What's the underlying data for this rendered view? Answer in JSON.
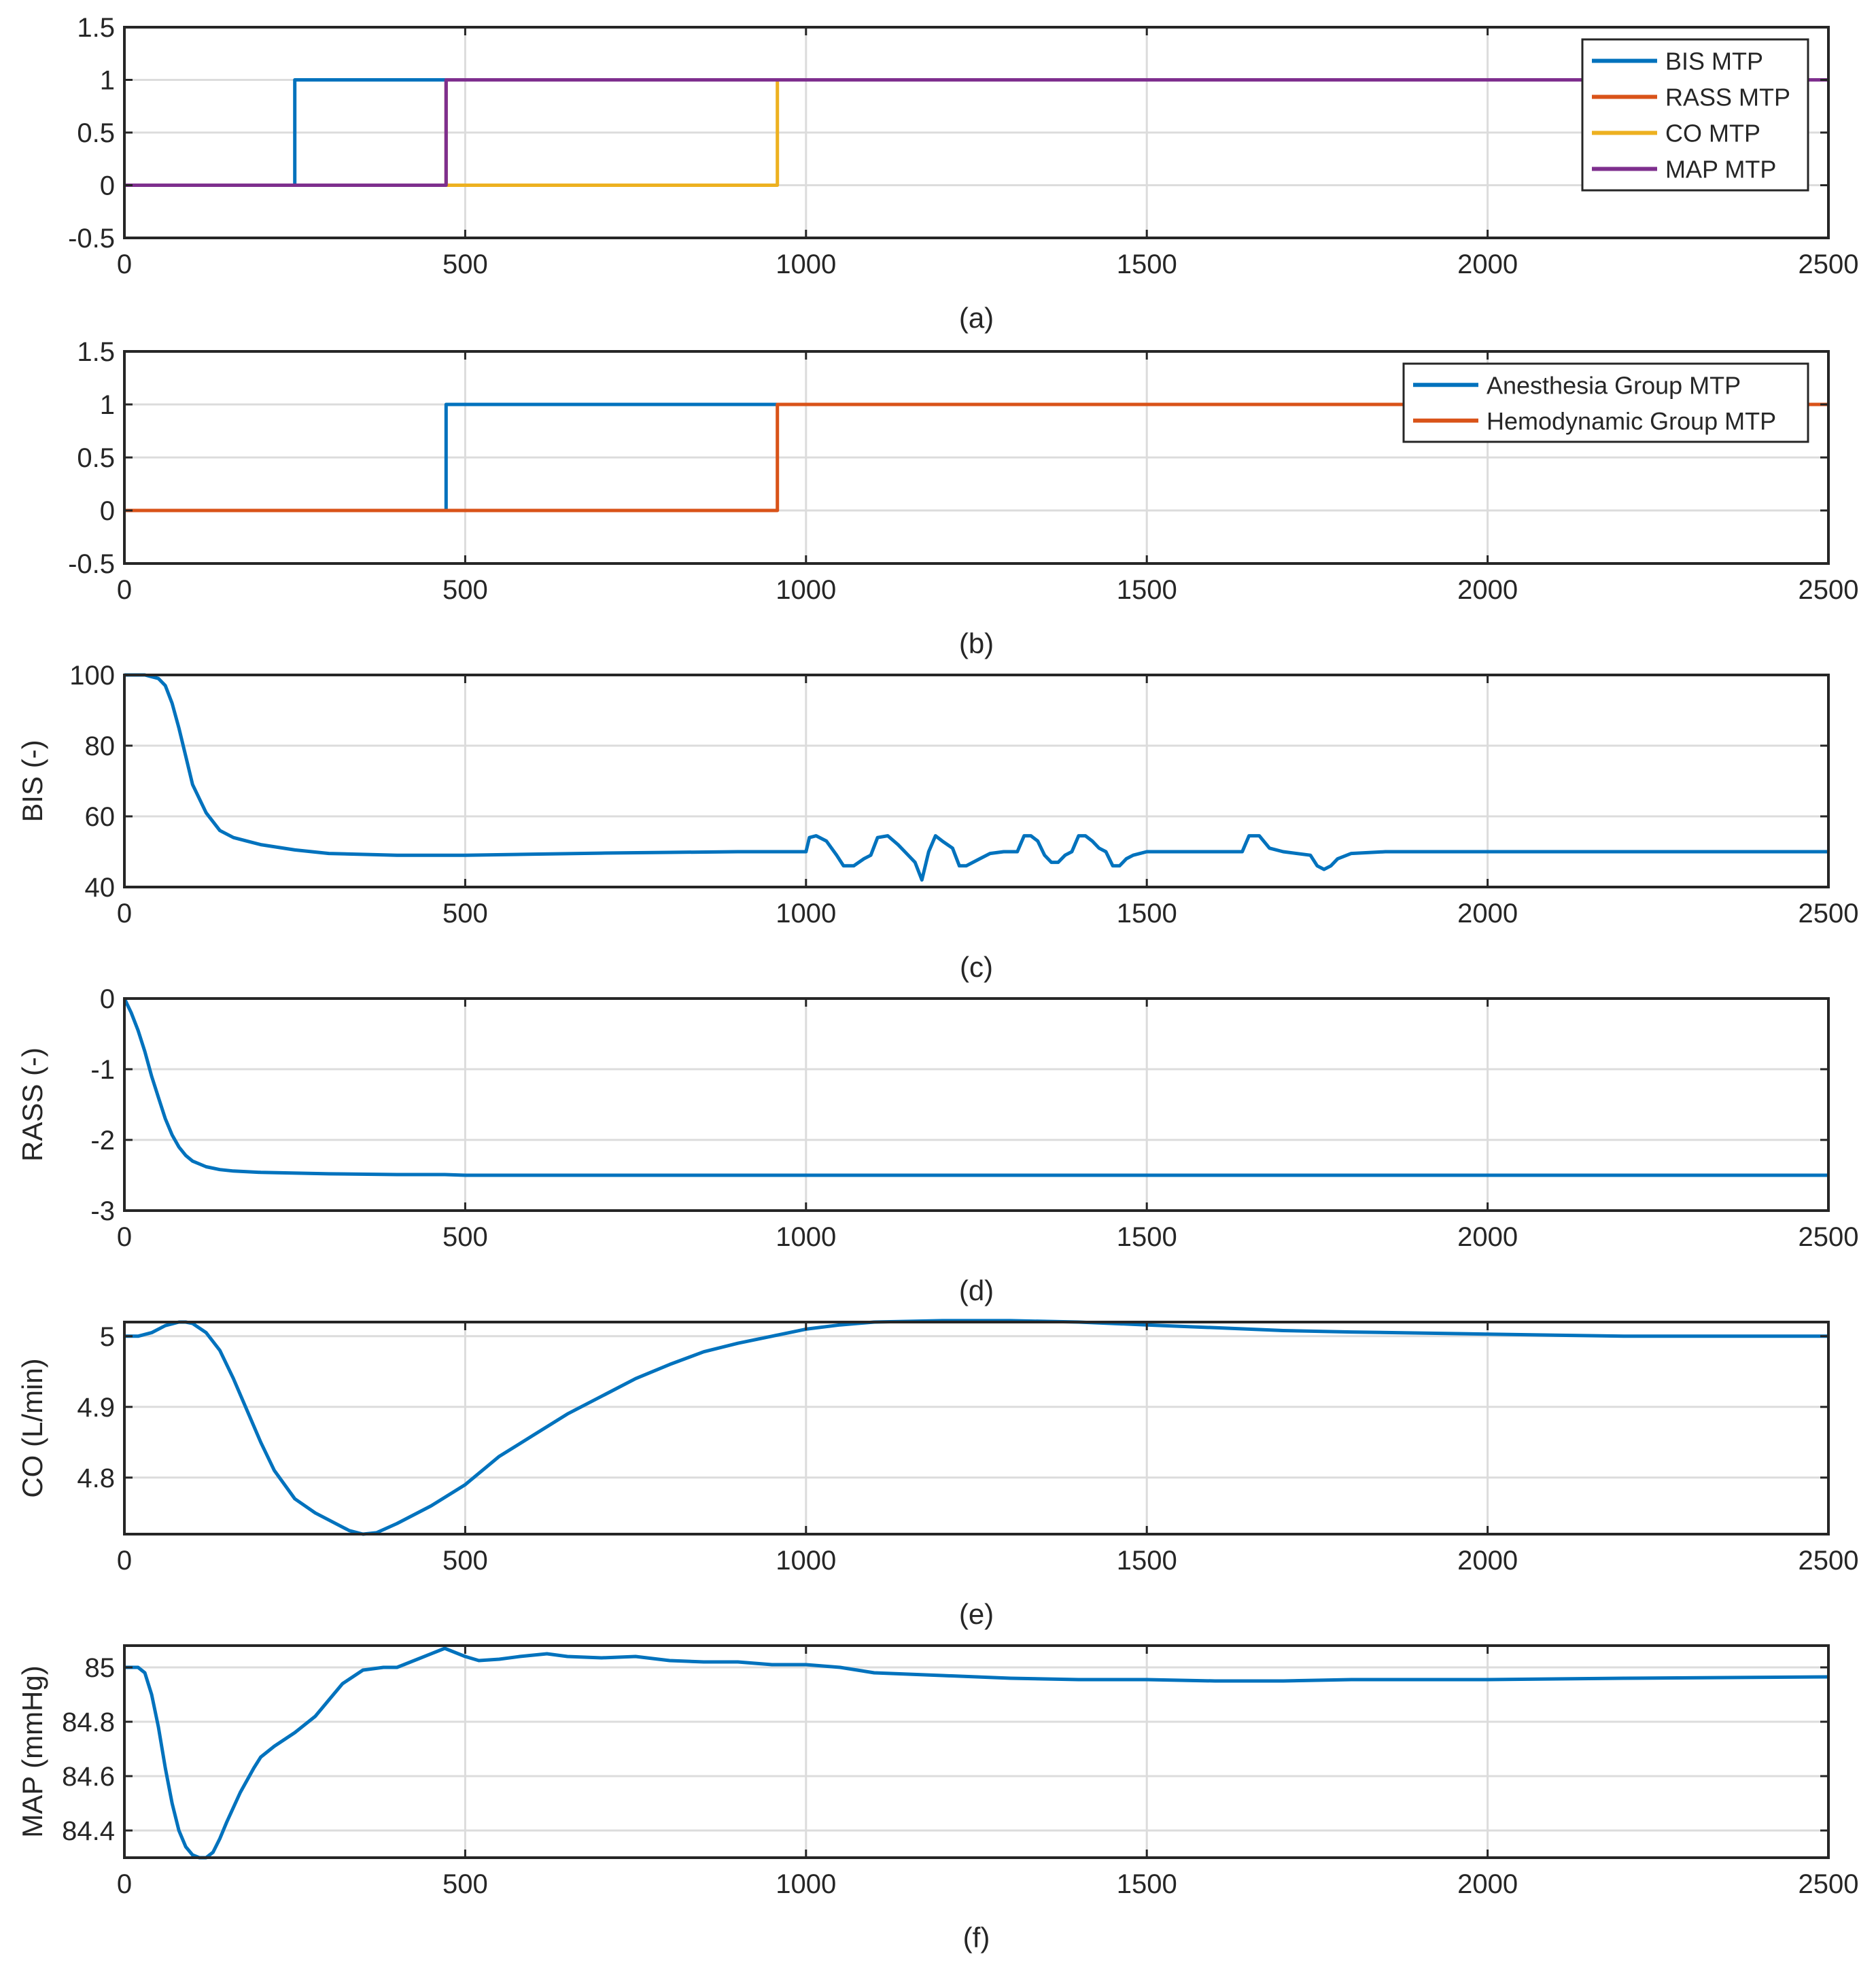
{
  "colors": {
    "blue": "#0072BD",
    "orange": "#D95319",
    "yellow": "#EDB120",
    "purple": "#7E2F8E"
  },
  "chart_data": [
    {
      "type": "line",
      "caption": "(a)",
      "ylabel": "",
      "xlim": [
        0,
        2500
      ],
      "ylim": [
        -0.5,
        1.5
      ],
      "xticks": [
        0,
        500,
        1000,
        1500,
        2000,
        2500
      ],
      "xtick_labels": [
        "0",
        "500",
        "1000",
        "1500",
        "2000",
        "2500"
      ],
      "yticks": [
        -0.5,
        0,
        0.5,
        1,
        1.5
      ],
      "ytick_labels": [
        "-0.5",
        "0",
        "0.5",
        "1",
        "1.5"
      ],
      "grid": true,
      "legend_position": "top-right",
      "series": [
        {
          "name": "BIS MTP",
          "color": "blue",
          "x": [
            0,
            250,
            250,
            2500
          ],
          "y": [
            0,
            0,
            1,
            1
          ]
        },
        {
          "name": "RASS MTP",
          "color": "orange",
          "x": [
            0,
            472,
            472,
            2500
          ],
          "y": [
            0,
            0,
            1,
            1
          ]
        },
        {
          "name": "CO MTP",
          "color": "yellow",
          "x": [
            0,
            958,
            958,
            2500
          ],
          "y": [
            0,
            0,
            1,
            1
          ]
        },
        {
          "name": "MAP MTP",
          "color": "purple",
          "x": [
            0,
            472,
            472,
            2500
          ],
          "y": [
            0,
            0,
            1,
            1
          ]
        }
      ]
    },
    {
      "type": "line",
      "caption": "(b)",
      "ylabel": "",
      "xlim": [
        0,
        2500
      ],
      "ylim": [
        -0.5,
        1.5
      ],
      "xticks": [
        0,
        500,
        1000,
        1500,
        2000,
        2500
      ],
      "xtick_labels": [
        "0",
        "500",
        "1000",
        "1500",
        "2000",
        "2500"
      ],
      "yticks": [
        -0.5,
        0,
        0.5,
        1,
        1.5
      ],
      "ytick_labels": [
        "-0.5",
        "0",
        "0.5",
        "1",
        "1.5"
      ],
      "grid": true,
      "legend_position": "top-right",
      "series": [
        {
          "name": "Anesthesia Group MTP",
          "color": "blue",
          "x": [
            0,
            472,
            472,
            2500
          ],
          "y": [
            0,
            0,
            1,
            1
          ]
        },
        {
          "name": "Hemodynamic Group MTP",
          "color": "orange",
          "x": [
            0,
            958,
            958,
            2500
          ],
          "y": [
            0,
            0,
            1,
            1
          ]
        }
      ]
    },
    {
      "type": "line",
      "caption": "(c)",
      "ylabel": "BIS (-)",
      "xlim": [
        0,
        2500
      ],
      "ylim": [
        40,
        100
      ],
      "xticks": [
        0,
        500,
        1000,
        1500,
        2000,
        2500
      ],
      "xtick_labels": [
        "0",
        "500",
        "1000",
        "1500",
        "2000",
        "2500"
      ],
      "yticks": [
        40,
        60,
        80,
        100
      ],
      "ytick_labels": [
        "40",
        "60",
        "80",
        "100"
      ],
      "grid": true,
      "legend_position": "none",
      "series": [
        {
          "name": "BIS",
          "color": "blue",
          "x": [
            0,
            30,
            50,
            60,
            70,
            80,
            90,
            100,
            120,
            140,
            160,
            180,
            200,
            250,
            300,
            400,
            500,
            600,
            700,
            800,
            900,
            990,
            1000,
            1005,
            1015,
            1030,
            1045,
            1055,
            1070,
            1085,
            1095,
            1105,
            1120,
            1135,
            1150,
            1160,
            1170,
            1180,
            1190,
            1200,
            1215,
            1225,
            1235,
            1255,
            1270,
            1290,
            1310,
            1320,
            1330,
            1340,
            1350,
            1360,
            1370,
            1380,
            1390,
            1400,
            1410,
            1420,
            1430,
            1440,
            1450,
            1460,
            1470,
            1480,
            1490,
            1500,
            1520,
            1640,
            1650,
            1665,
            1680,
            1700,
            1740,
            1750,
            1760,
            1770,
            1780,
            1800,
            1850,
            1900,
            2000,
            2500
          ],
          "y": [
            100,
            100,
            99,
            97,
            92,
            85,
            77,
            69,
            61,
            56,
            54,
            53,
            52,
            50.5,
            49.5,
            49,
            49,
            49.3,
            49.6,
            49.8,
            50,
            50,
            50,
            54,
            54.5,
            53,
            49,
            46,
            46,
            48,
            49,
            54,
            54.5,
            52,
            49,
            47,
            42,
            50,
            54.5,
            53,
            51,
            46,
            46,
            48,
            49.5,
            50,
            50,
            54.5,
            54.5,
            53,
            49,
            47,
            47,
            49,
            50,
            54.5,
            54.5,
            53,
            51,
            50,
            46,
            46,
            48,
            49,
            49.5,
            50,
            50,
            50,
            54.5,
            54.5,
            51,
            50,
            49,
            46,
            45,
            46,
            48,
            49.5,
            50,
            50,
            50,
            50
          ]
        }
      ]
    },
    {
      "type": "line",
      "caption": "(d)",
      "ylabel": "RASS (-)",
      "xlim": [
        0,
        2500
      ],
      "ylim": [
        -3,
        0
      ],
      "xticks": [
        0,
        500,
        1000,
        1500,
        2000,
        2500
      ],
      "xtick_labels": [
        "0",
        "500",
        "1000",
        "1500",
        "2000",
        "2500"
      ],
      "yticks": [
        -3,
        -2,
        -1,
        0
      ],
      "ytick_labels": [
        "-3",
        "-2",
        "-1",
        "0"
      ],
      "grid": true,
      "legend_position": "none",
      "series": [
        {
          "name": "RASS",
          "color": "blue",
          "x": [
            0,
            10,
            20,
            30,
            40,
            50,
            60,
            70,
            80,
            90,
            100,
            120,
            140,
            160,
            200,
            300,
            400,
            470,
            500,
            600,
            800,
            1000,
            2500
          ],
          "y": [
            0,
            -0.2,
            -0.45,
            -0.75,
            -1.1,
            -1.4,
            -1.7,
            -1.93,
            -2.1,
            -2.22,
            -2.3,
            -2.38,
            -2.42,
            -2.44,
            -2.46,
            -2.48,
            -2.49,
            -2.49,
            -2.5,
            -2.5,
            -2.5,
            -2.5,
            -2.5
          ]
        }
      ]
    },
    {
      "type": "line",
      "caption": "(e)",
      "ylabel": "CO (L/min)",
      "xlim": [
        0,
        2500
      ],
      "ylim": [
        4.72,
        5.02
      ],
      "xticks": [
        0,
        500,
        1000,
        1500,
        2000,
        2500
      ],
      "xtick_labels": [
        "0",
        "500",
        "1000",
        "1500",
        "2000",
        "2500"
      ],
      "yticks": [
        4.8,
        4.9,
        5
      ],
      "ytick_labels": [
        "4.8",
        "4.9",
        "5"
      ],
      "grid": true,
      "legend_position": "none",
      "series": [
        {
          "name": "CO",
          "color": "blue",
          "x": [
            0,
            20,
            40,
            60,
            80,
            90,
            100,
            120,
            140,
            160,
            180,
            200,
            220,
            250,
            280,
            300,
            330,
            350,
            370,
            400,
            450,
            500,
            550,
            600,
            650,
            700,
            750,
            800,
            850,
            900,
            950,
            1000,
            1050,
            1100,
            1200,
            1300,
            1400,
            1500,
            1600,
            1700,
            1800,
            2000,
            2200,
            2500
          ],
          "y": [
            5.0,
            5.0,
            5.005,
            5.015,
            5.02,
            5.02,
            5.018,
            5.005,
            4.98,
            4.94,
            4.895,
            4.85,
            4.81,
            4.77,
            4.75,
            4.74,
            4.725,
            4.72,
            4.722,
            4.735,
            4.76,
            4.79,
            4.83,
            4.86,
            4.89,
            4.915,
            4.94,
            4.96,
            4.978,
            4.99,
            5.0,
            5.01,
            5.016,
            5.02,
            5.022,
            5.022,
            5.02,
            5.016,
            5.012,
            5.008,
            5.006,
            5.003,
            5.0,
            5.0
          ]
        }
      ]
    },
    {
      "type": "line",
      "caption": "(f)",
      "ylabel": "MAP (mmHg)",
      "xlim": [
        0,
        2500
      ],
      "ylim": [
        84.3,
        85.08
      ],
      "xticks": [
        0,
        500,
        1000,
        1500,
        2000,
        2500
      ],
      "xtick_labels": [
        "0",
        "500",
        "1000",
        "1500",
        "2000",
        "2500"
      ],
      "yticks": [
        84.4,
        84.6,
        84.8,
        85
      ],
      "ytick_labels": [
        "84.4",
        "84.6",
        "84.8",
        "85"
      ],
      "grid": true,
      "legend_position": "none",
      "series": [
        {
          "name": "MAP",
          "color": "blue",
          "x": [
            0,
            20,
            30,
            40,
            50,
            60,
            70,
            80,
            90,
            100,
            110,
            120,
            130,
            140,
            150,
            170,
            190,
            200,
            220,
            250,
            280,
            300,
            320,
            350,
            380,
            400,
            430,
            460,
            470,
            480,
            500,
            520,
            550,
            580,
            620,
            650,
            700,
            750,
            800,
            850,
            900,
            950,
            1000,
            1050,
            1100,
            1200,
            1300,
            1400,
            1500,
            1600,
            1700,
            1800,
            1900,
            2000,
            2200,
            2500
          ],
          "y": [
            85.0,
            85.0,
            84.98,
            84.9,
            84.78,
            84.63,
            84.5,
            84.4,
            84.34,
            84.31,
            84.3,
            84.3,
            84.32,
            84.37,
            84.43,
            84.54,
            84.63,
            84.67,
            84.71,
            84.76,
            84.82,
            84.88,
            84.94,
            84.99,
            85.0,
            85.0,
            85.03,
            85.06,
            85.07,
            85.06,
            85.04,
            85.025,
            85.03,
            85.04,
            85.05,
            85.04,
            85.035,
            85.04,
            85.025,
            85.02,
            85.02,
            85.01,
            85.01,
            85.0,
            84.98,
            84.97,
            84.96,
            84.955,
            84.955,
            84.95,
            84.95,
            84.955,
            84.955,
            84.955,
            84.96,
            84.965
          ]
        }
      ]
    }
  ]
}
